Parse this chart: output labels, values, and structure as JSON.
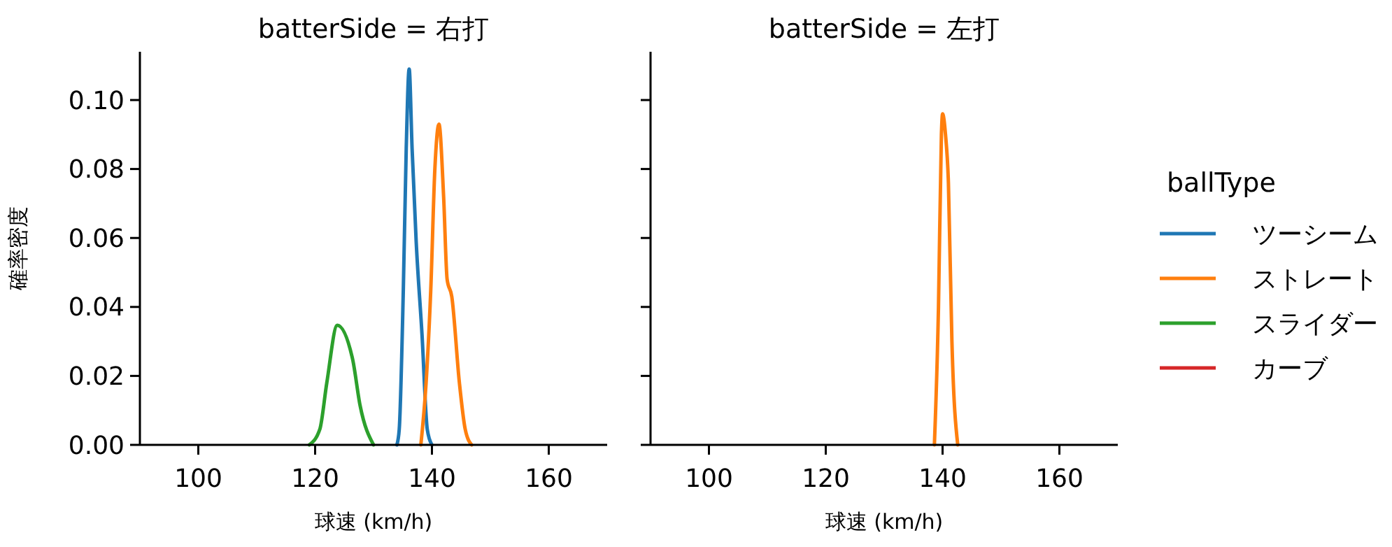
{
  "chart_data": [
    {
      "type": "line",
      "title": "batterSide = 右打",
      "xlabel": "球速 (km/h)",
      "ylabel": "確率密度",
      "xlim": [
        90,
        170
      ],
      "xticks": [
        100,
        120,
        140,
        160
      ],
      "ylim": [
        0,
        0.114
      ],
      "yticks": [
        {
          "value": 0,
          "label": "0.00"
        },
        {
          "value": 0.02,
          "label": "0.02"
        },
        {
          "value": 0.04,
          "label": "0.04"
        },
        {
          "value": 0.06,
          "label": "0.06"
        },
        {
          "value": 0.08,
          "label": "0.08"
        },
        {
          "value": 0.1,
          "label": "0.10"
        }
      ],
      "legend": false,
      "grid": false,
      "series": [
        {
          "color": "#1f77b4",
          "x": [
            134,
            134.4,
            135.1,
            135.6,
            136.1,
            136.6,
            137.3,
            138.3,
            139.2,
            140
          ],
          "values": [
            0,
            0.0045,
            0.045,
            0.086,
            0.109,
            0.086,
            0.059,
            0.032,
            0.0045,
            0
          ]
        },
        {
          "color": "#ff7f0e",
          "x": [
            138.1,
            139,
            139.8,
            140.5,
            141.2,
            142,
            142.6,
            143.4,
            144.7,
            145.7,
            146.8
          ],
          "values": [
            0,
            0.018,
            0.045,
            0.08,
            0.093,
            0.072,
            0.048,
            0.043,
            0.018,
            0.0045,
            0
          ]
        },
        {
          "color": "#2ca02c",
          "x": [
            119,
            120.8,
            122,
            123.8,
            126.4,
            127.7,
            130
          ],
          "values": [
            0,
            0.0045,
            0.018,
            0.0347,
            0.025,
            0.0114,
            0
          ]
        }
      ]
    },
    {
      "type": "line",
      "title": "batterSide = 左打",
      "xlabel": "球速 (km/h)",
      "legend_title": "ballType",
      "xlim": [
        90,
        170
      ],
      "xticks": [
        100,
        120,
        140,
        160
      ],
      "ylim": [
        0,
        0.114
      ],
      "yticks": [
        {
          "value": 0,
          "label": null
        },
        {
          "value": 0.02,
          "label": null
        },
        {
          "value": 0.04,
          "label": null
        },
        {
          "value": 0.06,
          "label": null
        },
        {
          "value": 0.08,
          "label": null
        },
        {
          "value": 0.1,
          "label": null
        }
      ],
      "tick_labels": "x",
      "legend": "right",
      "grid": false,
      "series": [
        {
          "name": "ツーシーム",
          "color": "#1f77b4"
        },
        {
          "name": "ストレート",
          "color": "#ff7f0e",
          "x": [
            138.6,
            139.3,
            139.8,
            140,
            140.5,
            141,
            141.6,
            142.6
          ],
          "values": [
            0,
            0.04,
            0.09,
            0.096,
            0.09,
            0.076,
            0.03,
            0
          ]
        },
        {
          "name": "スライダー",
          "color": "#2ca02c"
        },
        {
          "name": "カーブ",
          "color": "#d62728"
        }
      ]
    }
  ]
}
